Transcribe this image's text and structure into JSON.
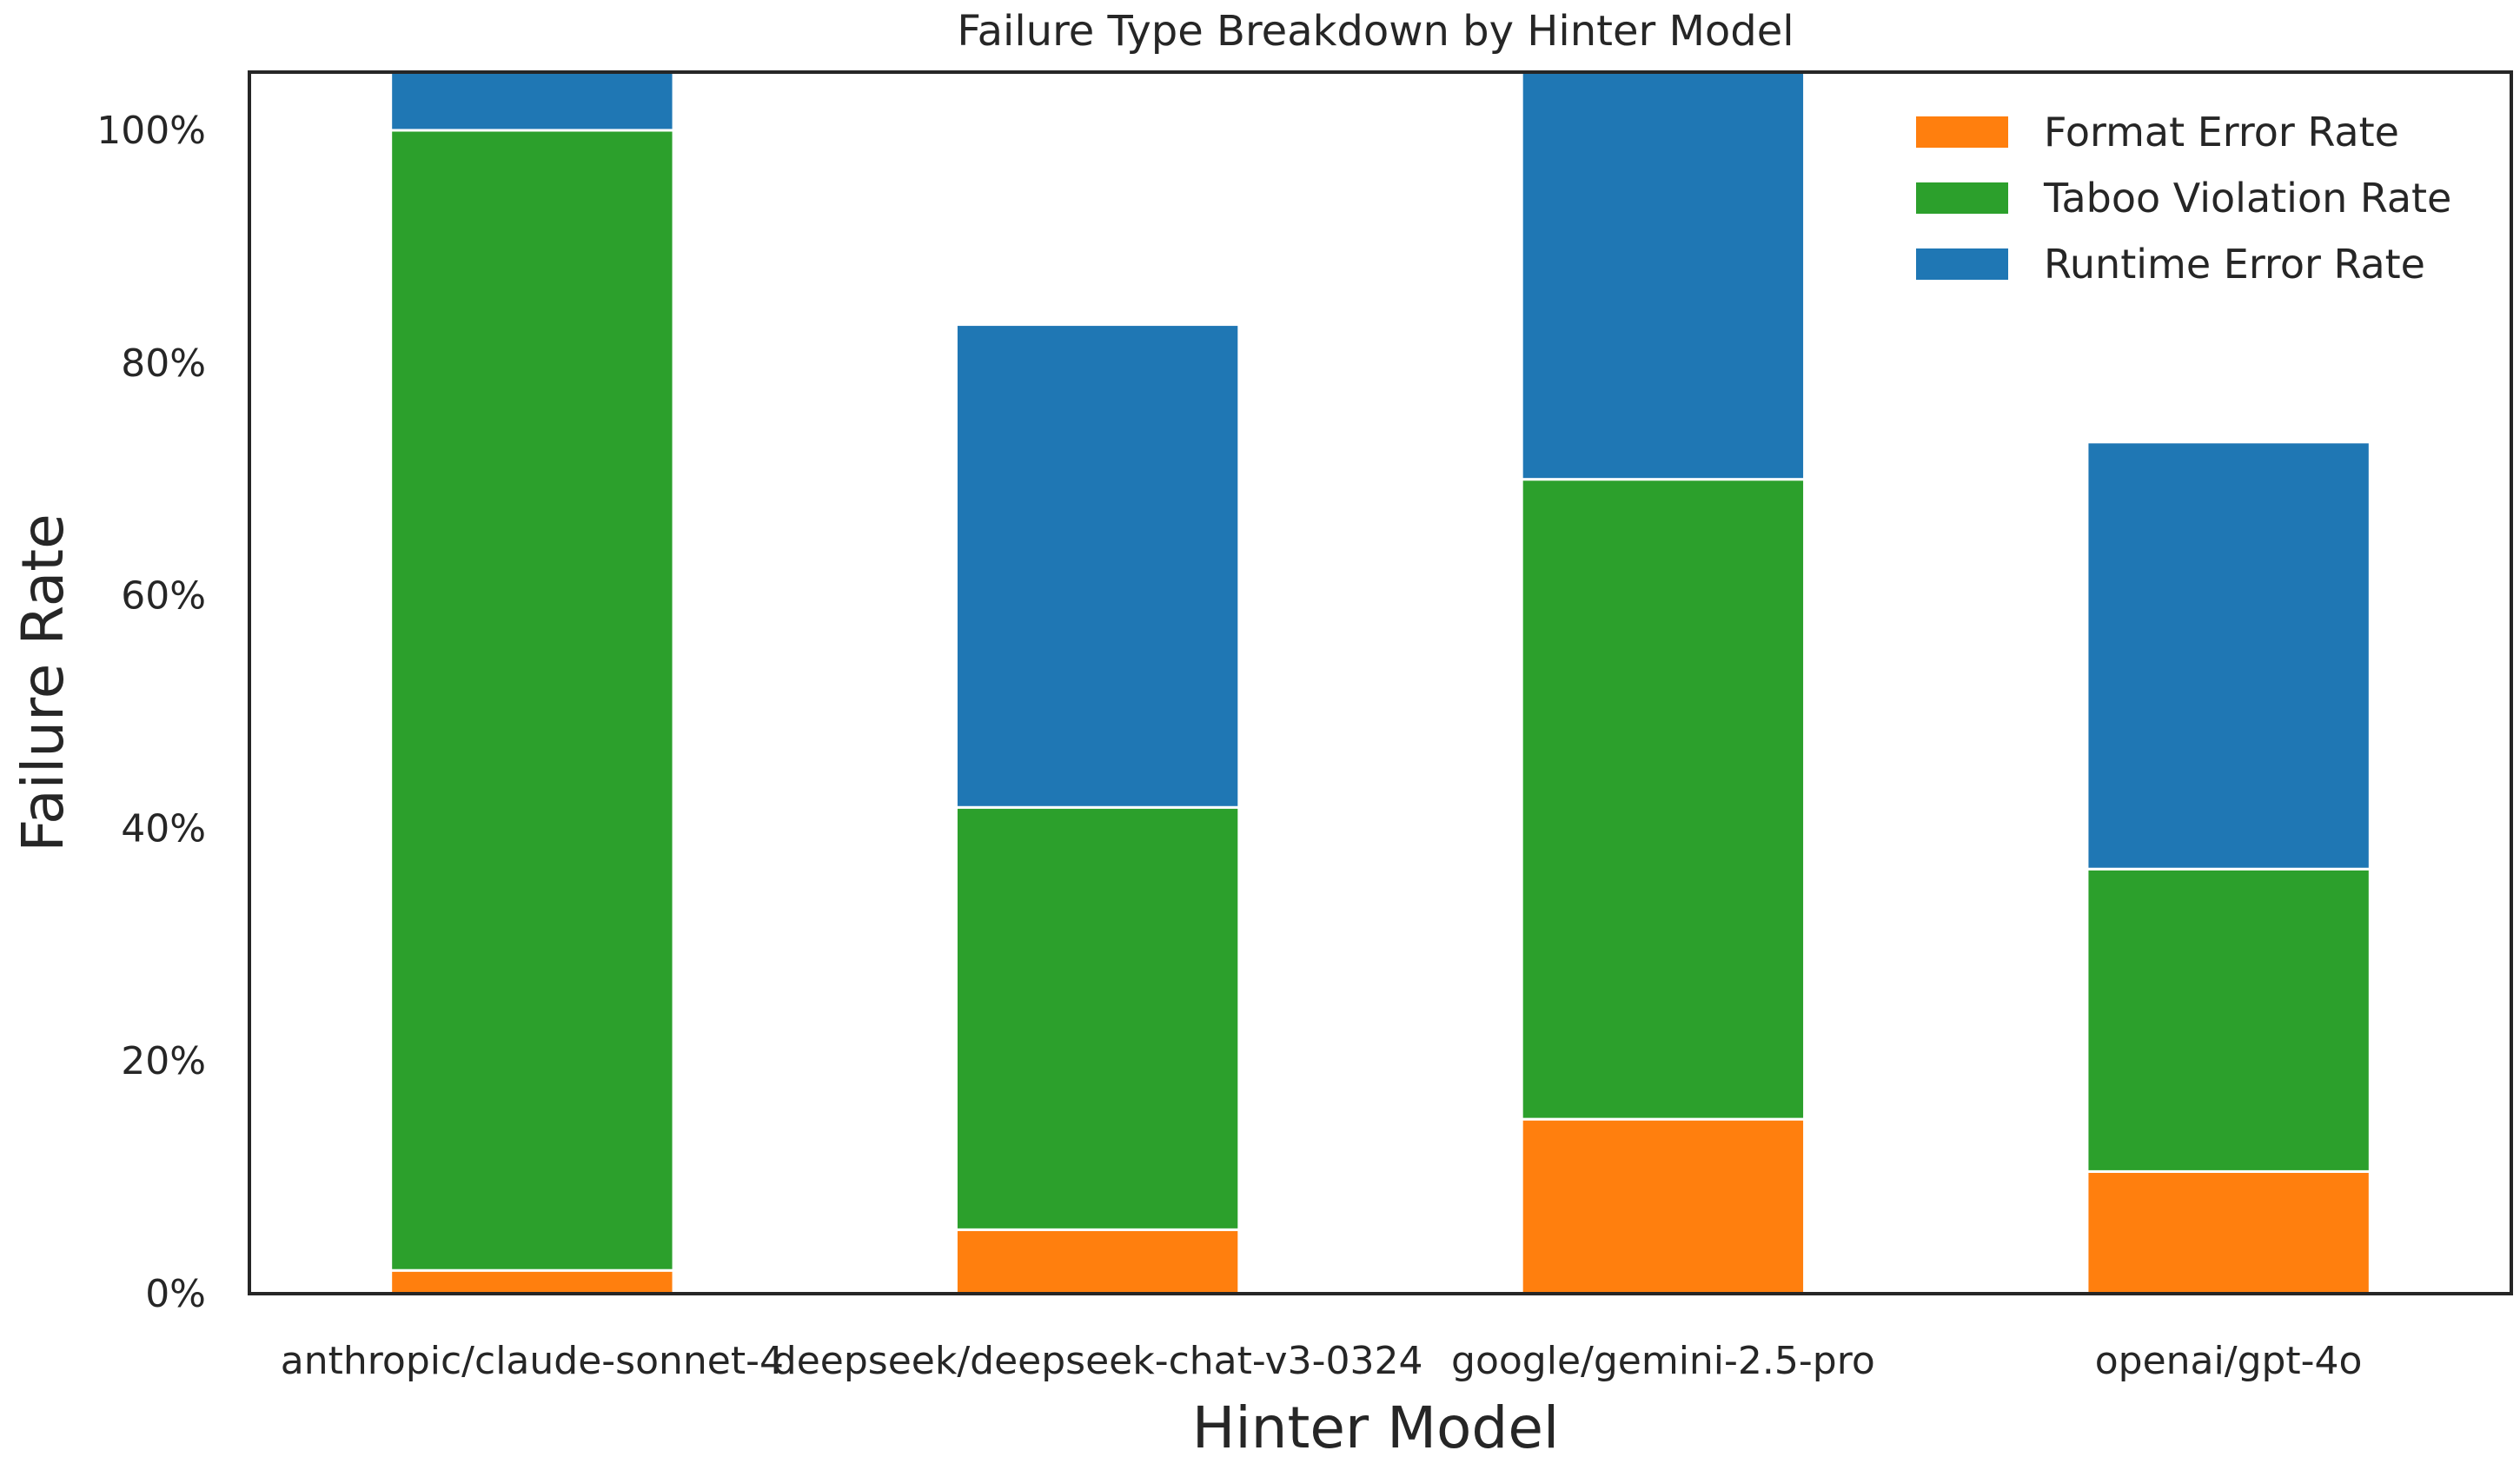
{
  "chart_data": {
    "type": "bar",
    "stacked": true,
    "title": "Failure Type Breakdown by Hinter Model",
    "xlabel": "Hinter Model",
    "ylabel": "Failure Rate",
    "categories": [
      "anthropic/claude-sonnet-4",
      "deepseek/deepseek-chat-v3-0324",
      "google/gemini-2.5-pro",
      "openai/gpt-4o"
    ],
    "series": [
      {
        "name": "Format Error Rate",
        "color": "#ff7f0e",
        "values": [
          2,
          5.5,
          15,
          10.5
        ]
      },
      {
        "name": "Taboo Violation Rate",
        "color": "#2ca02c",
        "values": [
          98,
          36.3,
          55,
          26
        ]
      },
      {
        "name": "Runtime Error Rate",
        "color": "#1f77b4",
        "values": [
          5,
          41.5,
          35,
          36.7
        ]
      }
    ],
    "ylim": [
      0,
      105
    ],
    "yticks": [
      0,
      20,
      40,
      60,
      80,
      100
    ],
    "ytick_labels": [
      "0%",
      "20%",
      "40%",
      "60%",
      "80%",
      "100%"
    ],
    "grid": false,
    "legend_position": "top-right"
  }
}
